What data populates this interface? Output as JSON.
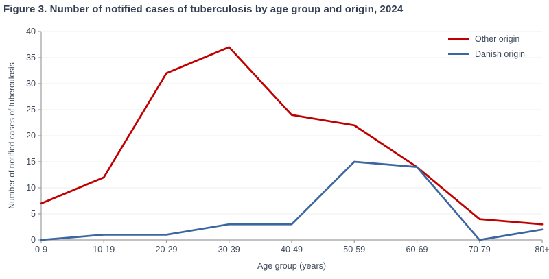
{
  "title": "Figure 3. Number of notified cases of tuberculosis by age group and origin, 2024",
  "chart_data": {
    "type": "line",
    "categories": [
      "0-9",
      "10-19",
      "20-29",
      "30-39",
      "40-49",
      "50-59",
      "60-69",
      "70-79",
      "80+"
    ],
    "series": [
      {
        "name": "Other origin",
        "color": "#C00000",
        "values": [
          7,
          12,
          32,
          37,
          24,
          22,
          14,
          4,
          3
        ]
      },
      {
        "name": "Danish origin",
        "color": "#3B66A0",
        "values": [
          0,
          1,
          1,
          3,
          3,
          15,
          14,
          0,
          2
        ]
      }
    ],
    "xlabel": "Age group (years)",
    "ylabel": "Number of notified cases of tuberculosis",
    "ylim": [
      0,
      40
    ],
    "ytick_step": 5,
    "grid": "horizontal gridlines every 5 units",
    "legend_position": "top-right inside plot"
  },
  "colors": {
    "title_text": "#333F50",
    "axis_text": "#3F4A5A",
    "axis_line": "#9E9E9E",
    "gridline": "#EFEFEF",
    "background": "#FFFFFF"
  }
}
